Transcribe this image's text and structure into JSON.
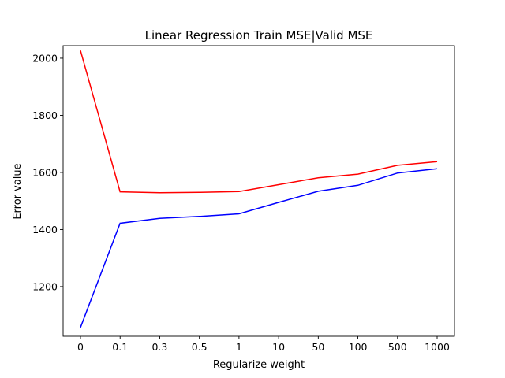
{
  "chart_data": {
    "type": "line",
    "title": "Linear Regression Train MSE|Valid MSE",
    "xlabel": "Regularize weight",
    "ylabel": "Error value",
    "categories": [
      "0",
      "0.1",
      "0.3",
      "0.5",
      "1",
      "10",
      "50",
      "100",
      "500",
      "1000"
    ],
    "yticks": [
      1200,
      1400,
      1600,
      1800,
      2000
    ],
    "ylim": [
      1026,
      2044
    ],
    "grid": false,
    "legend": false,
    "series": [
      {
        "color": "#ff0000",
        "values": [
          2027,
          1532,
          1529,
          1530,
          1533,
          1557,
          1581,
          1594,
          1625,
          1638
        ]
      },
      {
        "color": "#0000ff",
        "values": [
          1057,
          1422,
          1439,
          1446,
          1455,
          1495,
          1534,
          1555,
          1598,
          1613
        ]
      }
    ]
  }
}
